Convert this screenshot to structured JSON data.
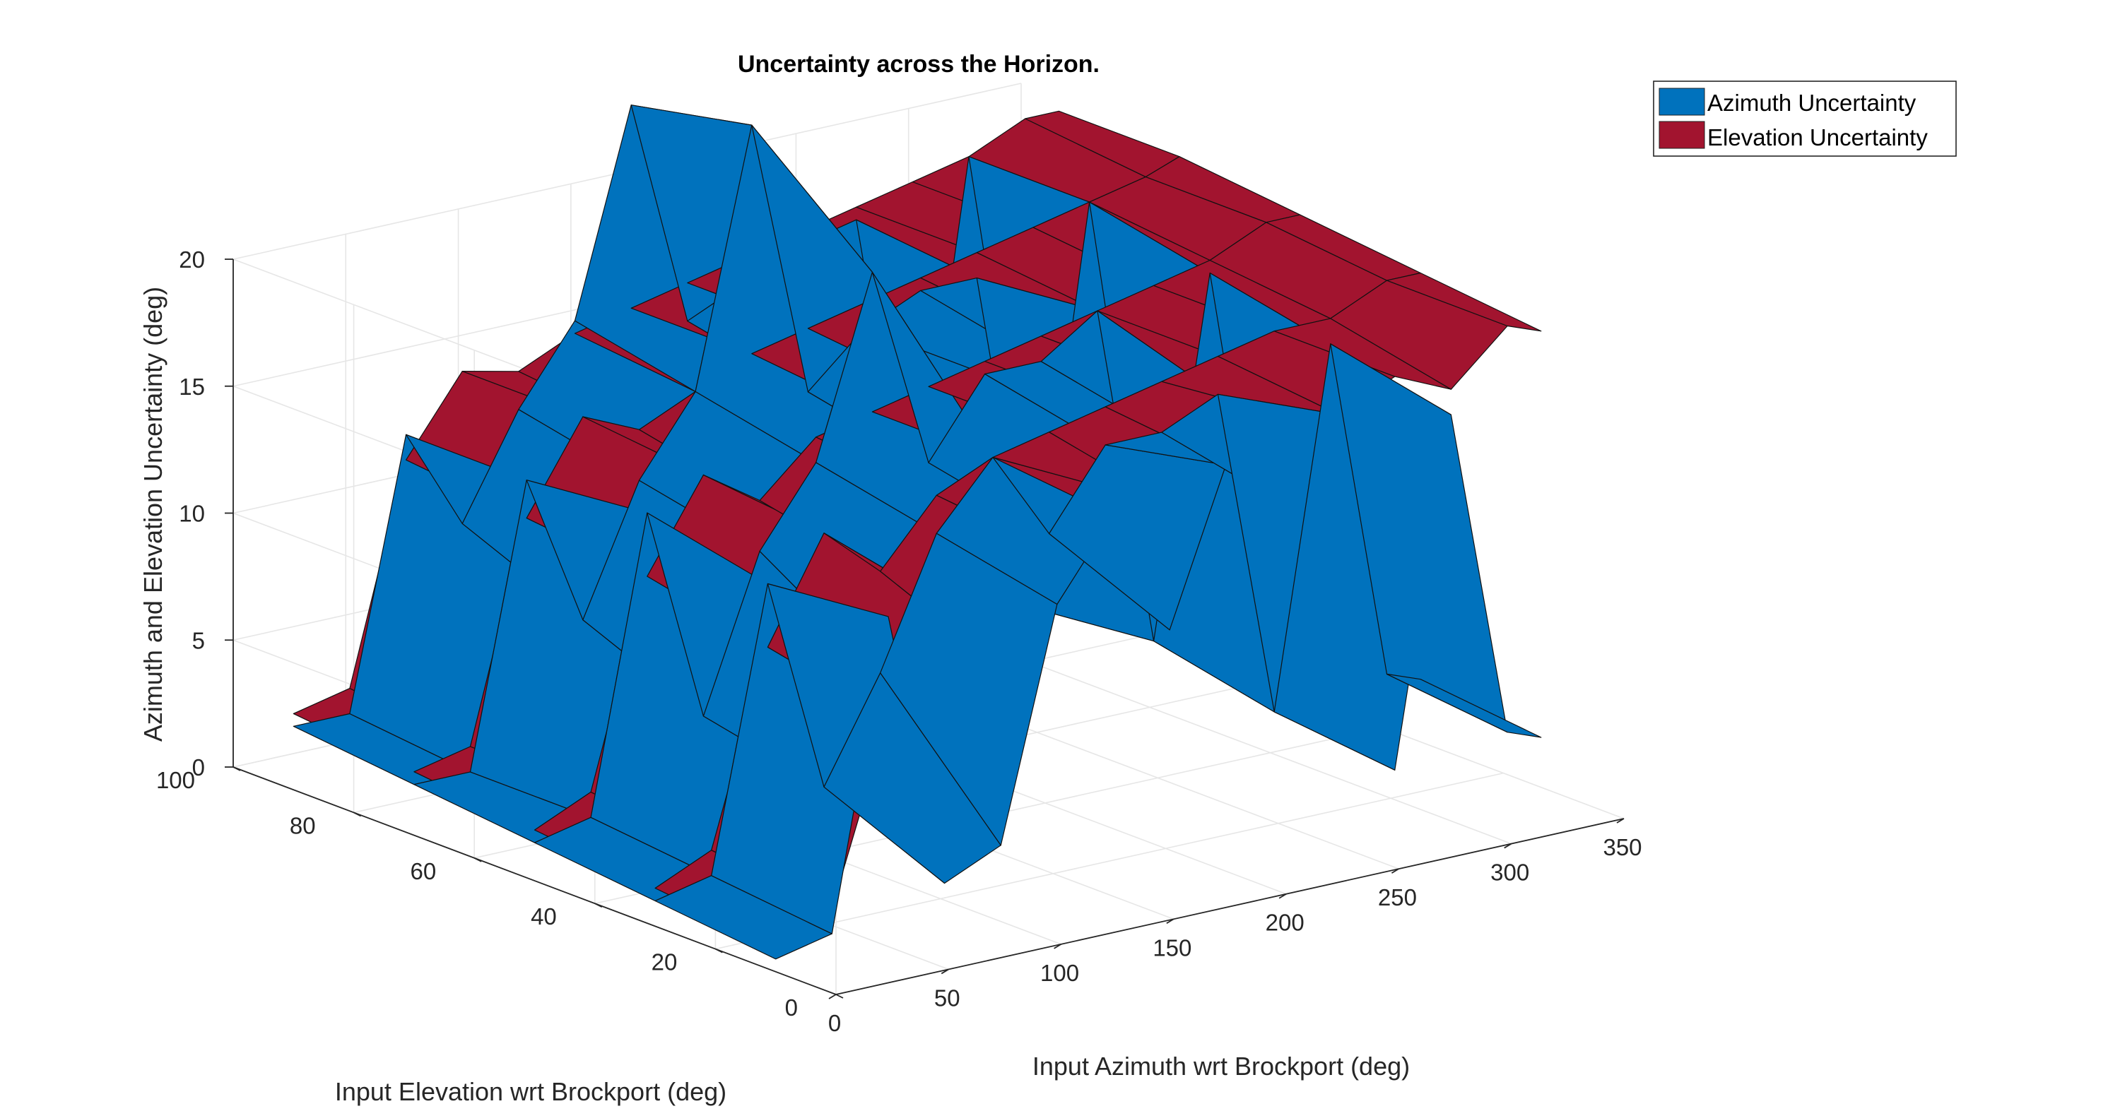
{
  "chart_data": {
    "type": "surface3d",
    "title": "Uncertainty across the Horizon.",
    "xlabel": "Input Azimuth wrt Brockport (deg)",
    "ylabel": "Input Elevation wrt Brockport (deg)",
    "zlabel": "Azimuth and Elevation Uncertainty (deg)",
    "xlim": [
      0,
      350
    ],
    "ylim": [
      0,
      100
    ],
    "zlim": [
      0,
      20
    ],
    "xticks": [
      "0",
      "50",
      "100",
      "150",
      "200",
      "250",
      "300",
      "350"
    ],
    "yticks": [
      "0",
      "20",
      "40",
      "60",
      "80",
      "100"
    ],
    "zticks": [
      "0",
      "5",
      "10",
      "15",
      "20"
    ],
    "grid": true,
    "legend_position": "top-right",
    "azimuth_grid": [
      0,
      25,
      50,
      75,
      100,
      125,
      150,
      175,
      200,
      225,
      250,
      275,
      300,
      325,
      340
    ],
    "elevation_grid": [
      10,
      30,
      50,
      70,
      90
    ],
    "series": [
      {
        "name": "Elevation Uncertainty",
        "color": "#A2142F",
        "z": [
          [
            1.0,
            2.0,
            9.0,
            13.0,
            10.0,
            14.0,
            16.0,
            15.0,
            16.0,
            17.5,
            17.0,
            18.0,
            17.0,
            19.0,
            18.5
          ],
          [
            1.5,
            2.5,
            10.0,
            14.0,
            12.0,
            14.5,
            15.5,
            16.0,
            16.5,
            17.0,
            17.5,
            18.0,
            18.0,
            19.0,
            19.0
          ],
          [
            2.0,
            3.0,
            11.0,
            14.5,
            13.0,
            15.0,
            15.5,
            16.0,
            16.5,
            17.0,
            17.5,
            18.0,
            18.5,
            19.5,
            19.5
          ],
          [
            2.5,
            3.0,
            11.5,
            15.0,
            14.0,
            15.0,
            16.0,
            16.5,
            17.0,
            17.5,
            18.0,
            18.5,
            19.0,
            19.5,
            20.0
          ],
          [
            3.0,
            3.5,
            12.0,
            15.0,
            14.5,
            15.5,
            16.0,
            16.5,
            17.0,
            17.5,
            18.0,
            18.5,
            19.0,
            20.0,
            20.0
          ]
        ]
      },
      {
        "name": "Azimuth Uncertainty",
        "color": "#0072BD",
        "z": [
          [
            0.5,
            1.0,
            13.0,
            2.0,
            3.0,
            12.0,
            15.0,
            10.0,
            16.0,
            14.0,
            17.0,
            2.5,
            16.0,
            3.0,
            2.5
          ],
          [
            1.0,
            1.5,
            12.5,
            4.0,
            8.0,
            13.0,
            15.5,
            12.0,
            15.0,
            15.0,
            16.0,
            3.0,
            17.0,
            3.5,
            3.0
          ],
          [
            1.5,
            2.0,
            13.5,
            5.0,
            11.0,
            14.0,
            21.0,
            13.0,
            16.0,
            16.0,
            17.5,
            4.0,
            18.0,
            4.0,
            4.5
          ],
          [
            2.0,
            2.0,
            13.0,
            7.0,
            12.0,
            15.0,
            25.0,
            14.0,
            16.0,
            17.0,
            17.0,
            3.5,
            19.0,
            4.0,
            3.0
          ],
          [
            2.5,
            2.5,
            13.0,
            9.0,
            13.0,
            16.0,
            24.0,
            15.0,
            16.0,
            17.0,
            17.5,
            4.0,
            19.0,
            4.5,
            3.5
          ]
        ]
      }
    ]
  }
}
